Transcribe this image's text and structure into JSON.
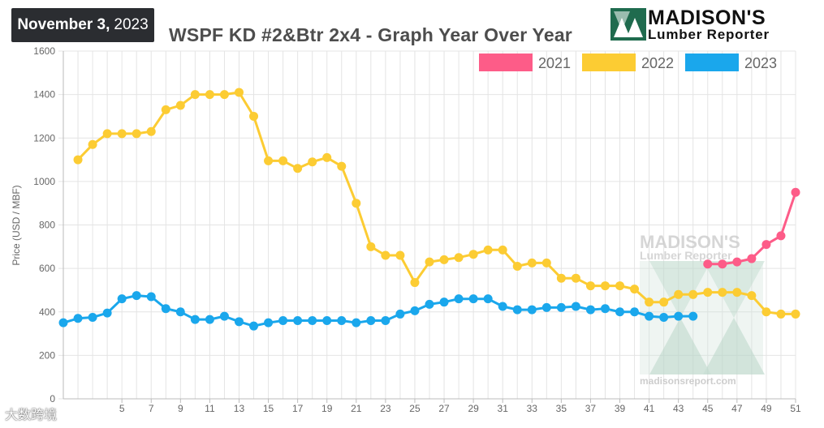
{
  "header": {
    "date_bold": "November 3,",
    "date_year": "2023",
    "title": "WSPF KD #2&Btr 2x4 - Graph Year Over Year"
  },
  "logo": {
    "name": "MADISON'S",
    "subtitle": "Lumber Reporter"
  },
  "watermark": {
    "name": "MADISON'S",
    "subtitle": "Lumber Reporter",
    "url": "madisonsreport.com"
  },
  "footer": {
    "source_watermark": "大数跨境"
  },
  "colors": {
    "2021": "#fd5c88",
    "2022": "#fccc33",
    "2023": "#1aa7ec",
    "badge": "#2b2d31",
    "grid": "#e4e4e4"
  },
  "chart_data": {
    "type": "line",
    "title": "WSPF KD #2&Btr 2x4 - Graph Year Over Year",
    "ylabel": "Price (USD / MBF)",
    "xlabel": "",
    "ylim": [
      0,
      1600
    ],
    "yticks": [
      0,
      200,
      400,
      600,
      800,
      1000,
      1200,
      1400,
      1600
    ],
    "xlim": [
      1,
      51
    ],
    "xtick_labels": [
      5,
      7,
      9,
      11,
      13,
      15,
      17,
      19,
      21,
      23,
      25,
      27,
      29,
      31,
      33,
      35,
      37,
      39,
      41,
      43,
      45,
      47,
      49,
      51
    ],
    "legend_position": "top-right",
    "grid": true,
    "series": [
      {
        "name": "2021",
        "x": [
          45,
          46,
          47,
          48,
          49,
          50,
          51
        ],
        "values": [
          620,
          620,
          630,
          645,
          710,
          750,
          950
        ]
      },
      {
        "name": "2022",
        "x": [
          2,
          3,
          4,
          5,
          6,
          7,
          8,
          9,
          10,
          11,
          12,
          13,
          14,
          15,
          16,
          17,
          18,
          19,
          20,
          21,
          22,
          23,
          24,
          25,
          26,
          27,
          28,
          29,
          30,
          31,
          32,
          33,
          34,
          35,
          36,
          37,
          38,
          39,
          40,
          41,
          42,
          43,
          44,
          45,
          46,
          47,
          48,
          49,
          50,
          51
        ],
        "values": [
          1100,
          1170,
          1220,
          1220,
          1220,
          1230,
          1330,
          1350,
          1400,
          1400,
          1400,
          1410,
          1300,
          1095,
          1095,
          1060,
          1090,
          1110,
          1070,
          900,
          700,
          660,
          660,
          535,
          630,
          640,
          650,
          665,
          685,
          685,
          610,
          625,
          625,
          555,
          555,
          520,
          520,
          520,
          505,
          445,
          445,
          480,
          480,
          490,
          490,
          490,
          475,
          400,
          390,
          390
        ]
      },
      {
        "name": "2023",
        "x": [
          1,
          2,
          3,
          4,
          5,
          6,
          7,
          8,
          9,
          10,
          11,
          12,
          13,
          14,
          15,
          16,
          17,
          18,
          19,
          20,
          21,
          22,
          23,
          24,
          25,
          26,
          27,
          28,
          29,
          30,
          31,
          32,
          33,
          34,
          35,
          36,
          37,
          38,
          39,
          40,
          41,
          42,
          43,
          44
        ],
        "values": [
          350,
          370,
          375,
          395,
          460,
          475,
          470,
          415,
          400,
          365,
          365,
          380,
          355,
          335,
          350,
          360,
          360,
          360,
          360,
          360,
          350,
          360,
          360,
          390,
          405,
          435,
          445,
          460,
          460,
          460,
          425,
          410,
          410,
          420,
          420,
          425,
          410,
          415,
          400,
          400,
          380,
          375,
          380,
          380
        ]
      }
    ]
  }
}
